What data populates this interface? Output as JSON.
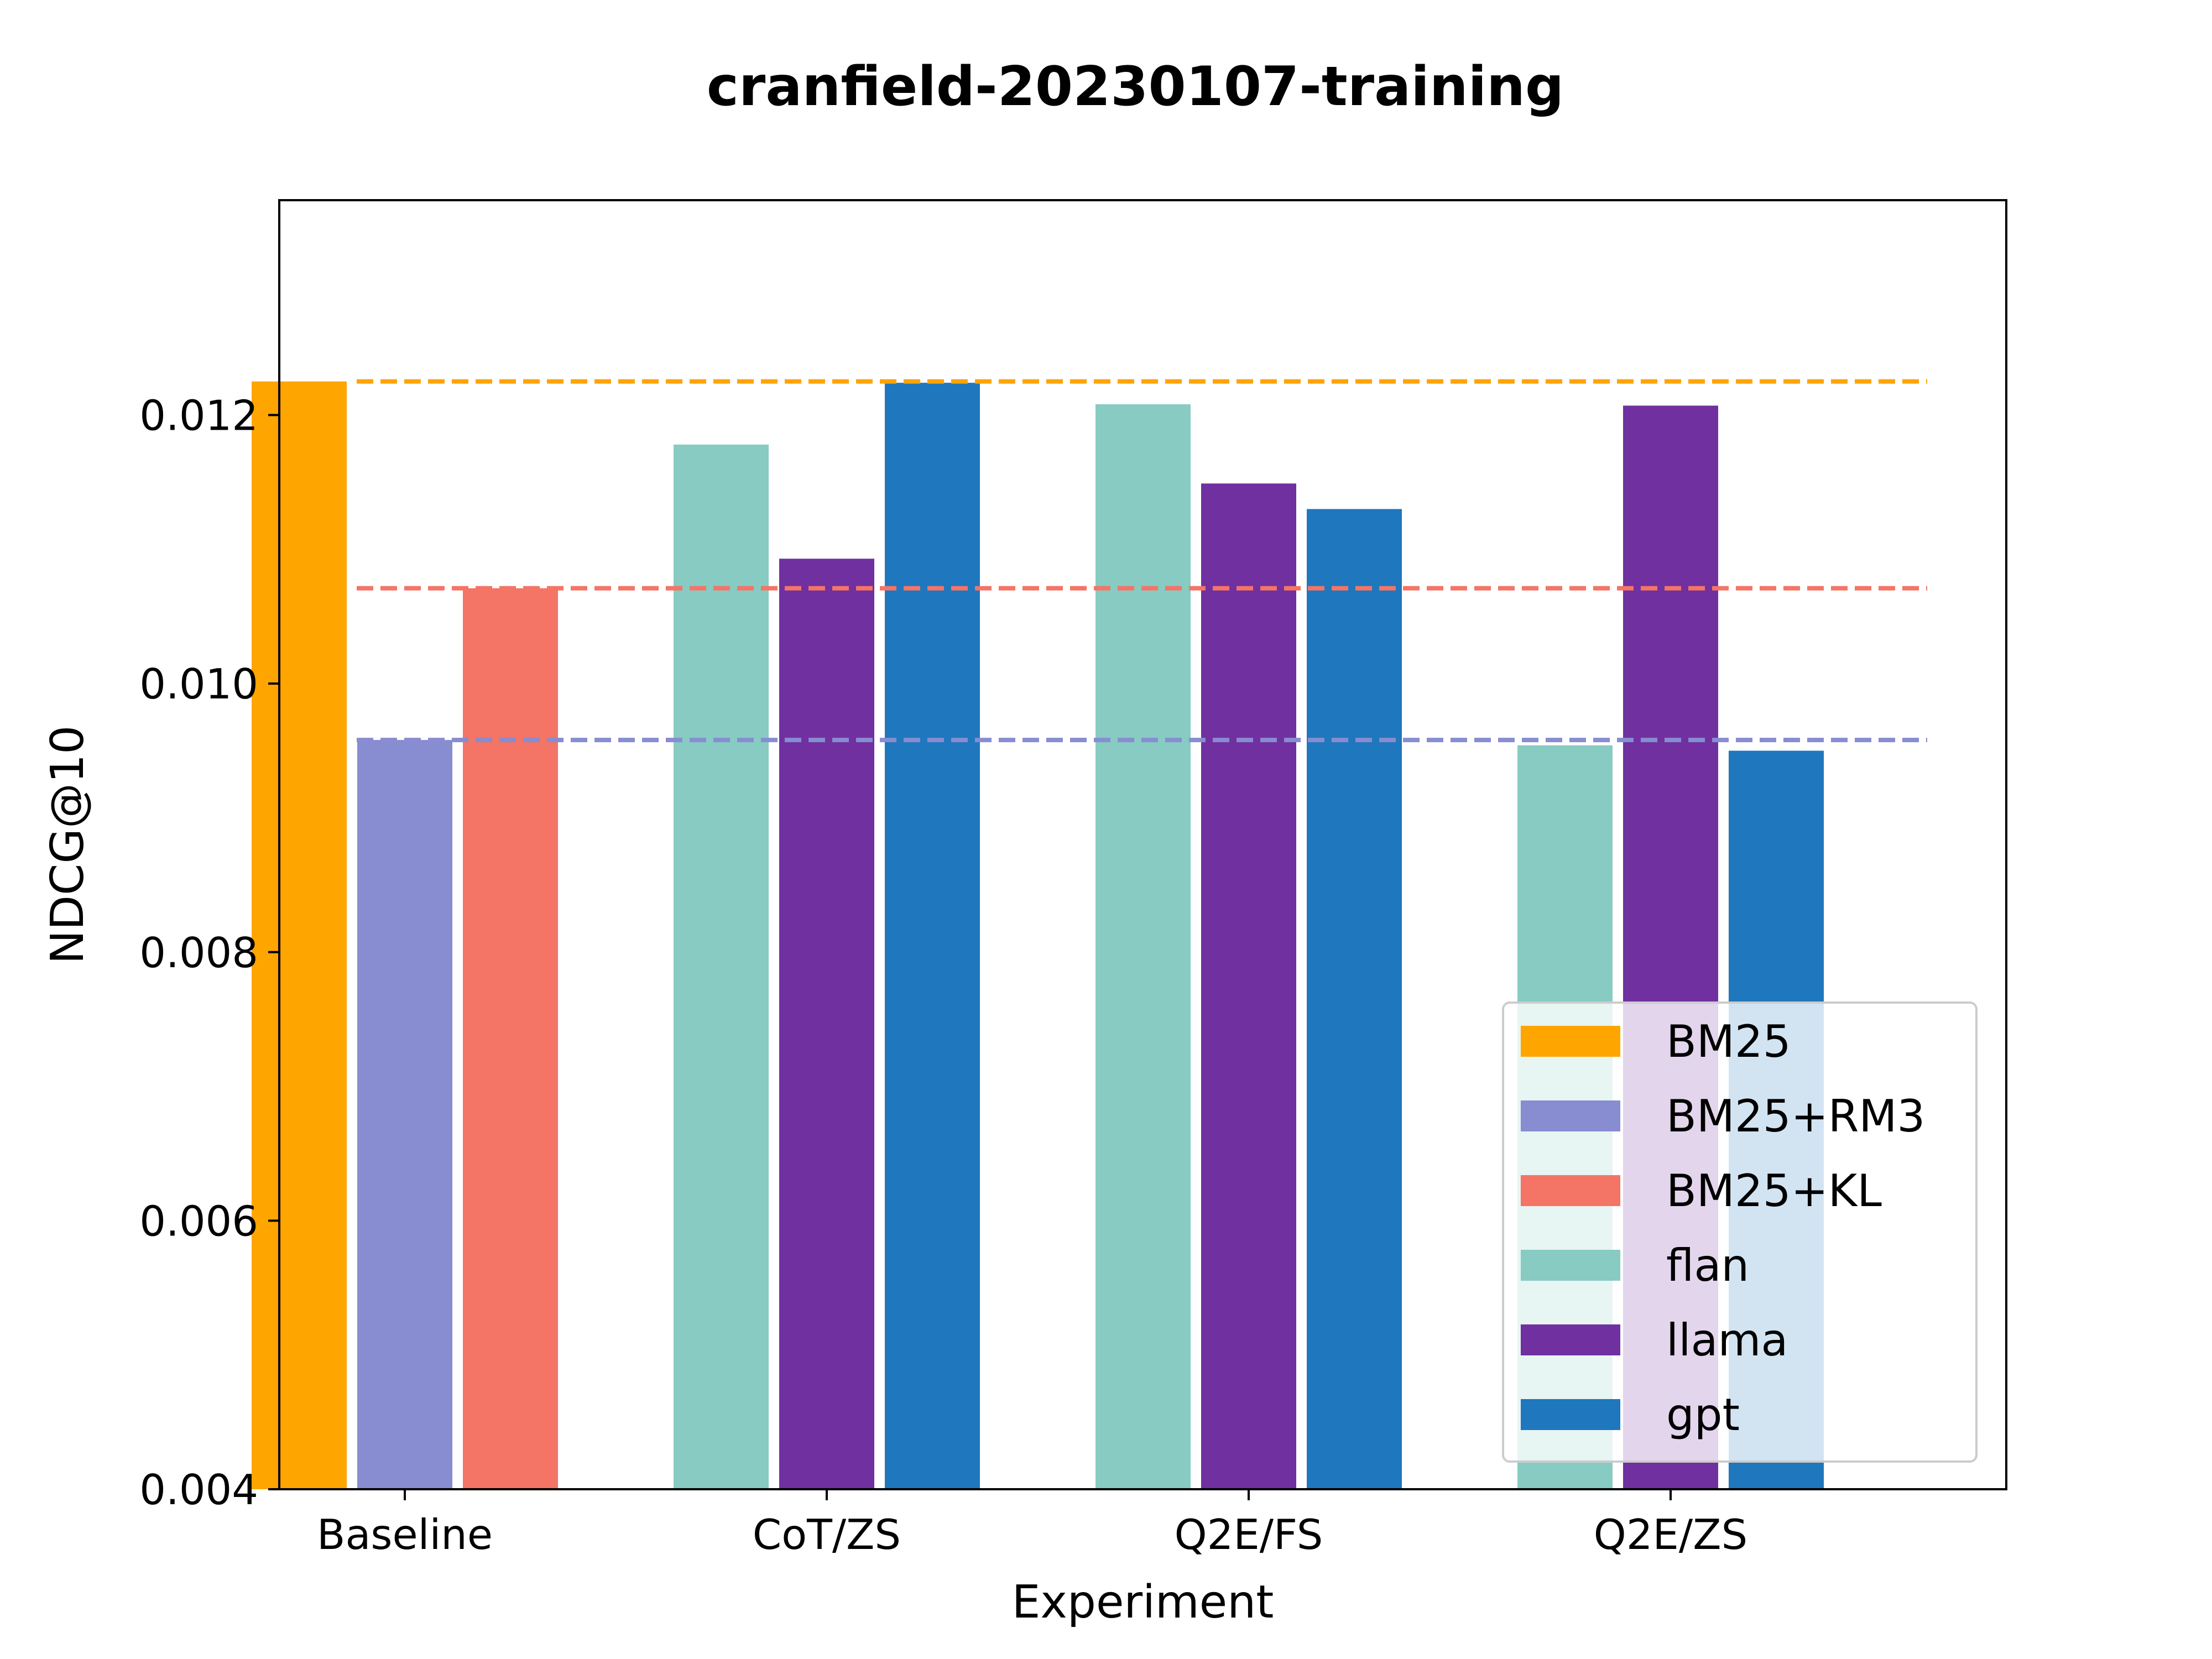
{
  "chart_data": {
    "type": "bar",
    "title": "cranfield-20230107-training",
    "xlabel": "Experiment",
    "ylabel": "NDCG@10",
    "ylim": [
      0.004,
      0.0136
    ],
    "yticks": [
      "0.004",
      "0.006",
      "0.008",
      "0.010",
      "0.012"
    ],
    "grid": false,
    "legend_position": "bottom-right",
    "categories": [
      {
        "label": "Baseline",
        "series": [
          {
            "name": "BM25",
            "value": 0.01225
          },
          {
            "name": "BM25+RM3",
            "value": 0.00958
          },
          {
            "name": "BM25+KL",
            "value": 0.01071
          }
        ]
      },
      {
        "label": "CoT/ZS",
        "series": [
          {
            "name": "flan",
            "value": 0.01178
          },
          {
            "name": "llama",
            "value": 0.01093
          },
          {
            "name": "gpt",
            "value": 0.01224
          }
        ]
      },
      {
        "label": "Q2E/FS",
        "series": [
          {
            "name": "flan",
            "value": 0.01208
          },
          {
            "name": "llama",
            "value": 0.01149
          },
          {
            "name": "gpt",
            "value": 0.0113
          }
        ]
      },
      {
        "label": "Q2E/ZS",
        "series": [
          {
            "name": "flan",
            "value": 0.00954
          },
          {
            "name": "llama",
            "value": 0.01207
          },
          {
            "name": "gpt",
            "value": 0.0095
          }
        ]
      }
    ],
    "reference_lines": [
      {
        "series": "BM25",
        "value": 0.01225,
        "style": "dashed"
      },
      {
        "series": "BM25+KL",
        "value": 0.01071,
        "style": "dashed"
      },
      {
        "series": "BM25+RM3",
        "value": 0.00958,
        "style": "dashed"
      }
    ],
    "legend": [
      {
        "name": "BM25",
        "color": "#FFA500"
      },
      {
        "name": "BM25+RM3",
        "color": "#888CD0"
      },
      {
        "name": "BM25+KL",
        "color": "#F47466"
      },
      {
        "name": "flan",
        "color": "#87CBC3"
      },
      {
        "name": "llama",
        "color": "#7030A0"
      },
      {
        "name": "gpt",
        "color": "#1F77BD"
      }
    ]
  }
}
